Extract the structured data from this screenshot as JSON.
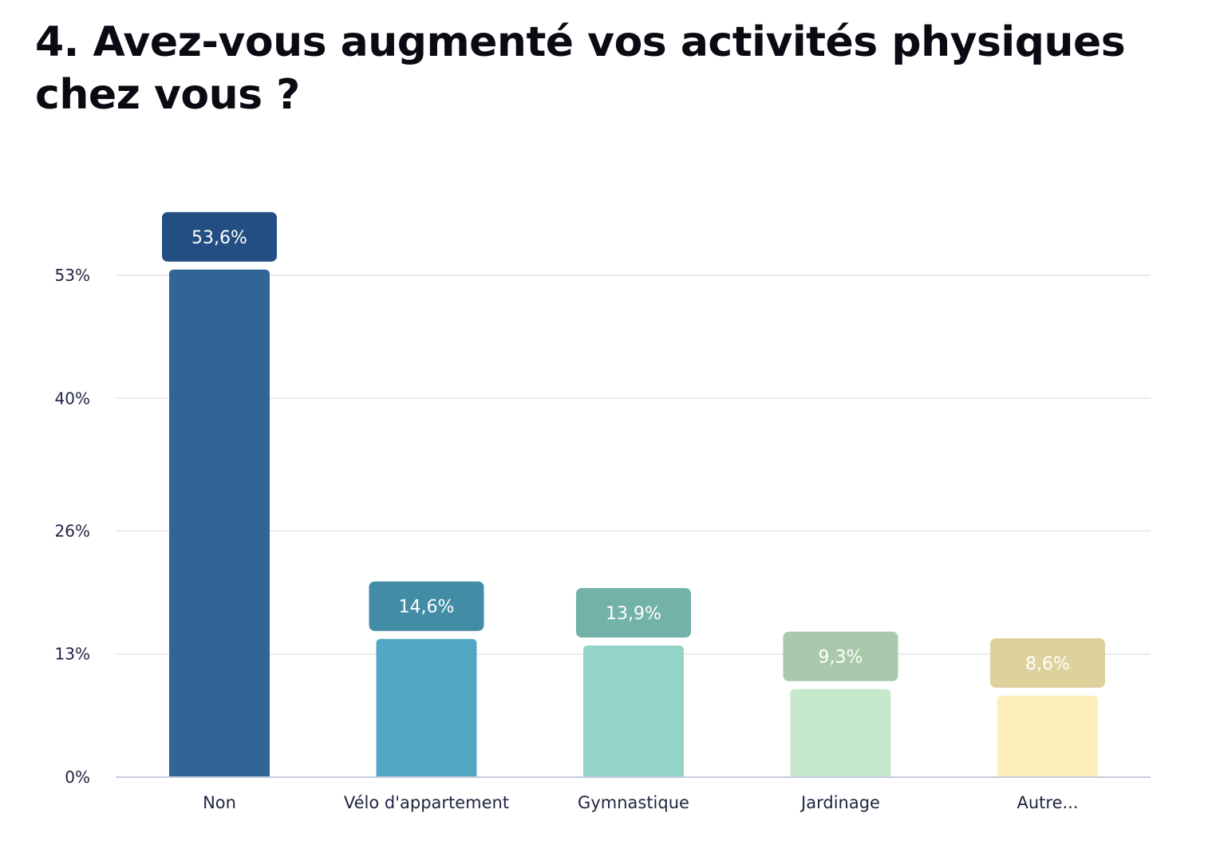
{
  "chart_data": {
    "type": "bar",
    "title": "4. Avez-vous augmenté vos activités physiques chez vous ?",
    "categories": [
      "Non",
      "Vélo d'appartement",
      "Gymnastique",
      "Jardinage",
      "Autre..."
    ],
    "values": [
      53.6,
      14.6,
      13.9,
      9.3,
      8.6
    ],
    "data_labels": [
      "53,6%",
      "14,6%",
      "13,9%",
      "9,3%",
      "8,6%"
    ],
    "y_ticks": [
      0,
      13,
      26,
      40,
      53
    ],
    "y_tick_labels": [
      "0%",
      "13%",
      "26%",
      "40%",
      "53%"
    ],
    "ylim": [
      0,
      53
    ],
    "grid": true,
    "legend": "none",
    "bar_colors": [
      "#306596",
      "#52a8c4",
      "#93d3c8",
      "#c6e8cb",
      "#fbeeb9"
    ],
    "label_colors": [
      "#224e83",
      "#438ca6",
      "#73b2a8",
      "#a9c9ac",
      "#ddd19c"
    ],
    "axis_color": "#c8cde0",
    "grid_color": "#e3e6ee",
    "text_color": "#1f2342"
  }
}
